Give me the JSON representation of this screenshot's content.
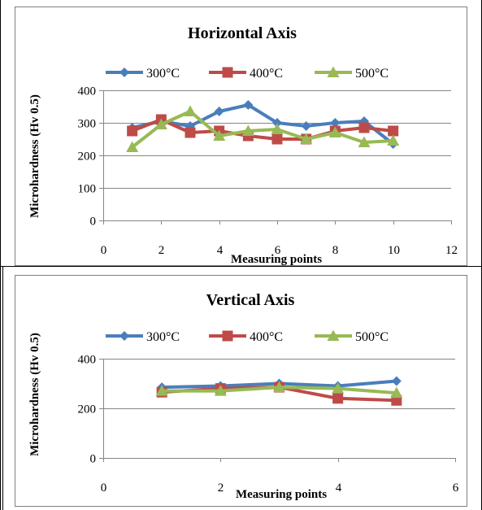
{
  "chart_data": [
    {
      "type": "line",
      "title": "Horizontal Axis",
      "xlabel": "Measuring points",
      "ylabel": "Microhardness (Hv 0.5)",
      "xlim": [
        0,
        12
      ],
      "ylim": [
        0,
        400
      ],
      "xticks": [
        0,
        2,
        4,
        6,
        8,
        10,
        12
      ],
      "yticks": [
        0,
        100,
        200,
        300,
        400
      ],
      "x_tick_labels": [
        "0",
        "2",
        "4",
        "6",
        "8",
        "10",
        "12"
      ],
      "y_tick_labels": [
        "0",
        "100",
        "200",
        "300",
        "400"
      ],
      "grid": "horizontal",
      "legend_position": "top",
      "x": [
        1,
        2,
        3,
        4,
        5,
        6,
        7,
        8,
        9,
        10
      ],
      "series": [
        {
          "name": "300°C",
          "color": "#4a7ebb",
          "marker": "diamond",
          "values": [
            285,
            305,
            290,
            335,
            355,
            300,
            290,
            300,
            305,
            235
          ]
        },
        {
          "name": "400°C",
          "color": "#be4b48",
          "marker": "square",
          "values": [
            275,
            310,
            270,
            275,
            260,
            250,
            250,
            275,
            285,
            275
          ]
        },
        {
          "name": "500°C",
          "color": "#98b954",
          "marker": "triangle",
          "values": [
            225,
            295,
            335,
            260,
            275,
            280,
            250,
            270,
            240,
            245
          ]
        }
      ]
    },
    {
      "type": "line",
      "title": "Vertical Axis",
      "xlabel": "Measuring points",
      "ylabel": "Microhardness (Hv 0.5)",
      "xlim": [
        0,
        6
      ],
      "ylim": [
        0,
        400
      ],
      "xticks": [
        0,
        2,
        4,
        6
      ],
      "yticks": [
        0,
        200,
        400
      ],
      "x_tick_labels": [
        "0",
        "2",
        "4",
        "6"
      ],
      "y_tick_labels": [
        "0",
        "200",
        "400"
      ],
      "grid": "horizontal",
      "legend_position": "top",
      "x": [
        1,
        2,
        3,
        4,
        5
      ],
      "series": [
        {
          "name": "300°C",
          "color": "#4a7ebb",
          "marker": "diamond",
          "values": [
            285,
            290,
            300,
            290,
            310
          ]
        },
        {
          "name": "400°C",
          "color": "#be4b48",
          "marker": "square",
          "values": [
            265,
            280,
            285,
            240,
            232
          ]
        },
        {
          "name": "500°C",
          "color": "#98b954",
          "marker": "triangle",
          "values": [
            270,
            270,
            285,
            280,
            262
          ]
        }
      ]
    }
  ]
}
